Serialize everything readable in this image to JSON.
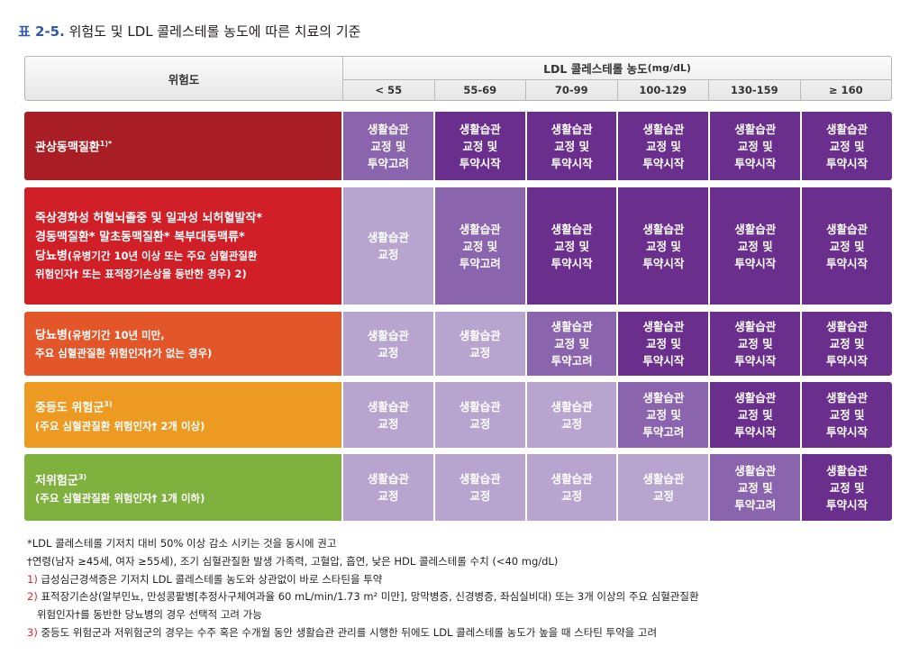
{
  "title": {
    "number": "표 2-5.",
    "text": "위험도 및 LDL 콜레스테롤 농도에 따른 치료의 기준"
  },
  "header": {
    "risk": "위험도",
    "ldl": "LDL 콜레스테롤 농도",
    "unit": "(mg/dL)",
    "columns": [
      "< 55",
      "55-69",
      "70-99",
      "100-129",
      "130-159",
      "≥ 160"
    ]
  },
  "rows": [
    {
      "color": "#a91e25",
      "lines": [
        {
          "text": "관상동맥질환",
          "sup": "1)*",
          "small": ""
        }
      ],
      "cells": [
        {
          "text": "생활습관\n교정 및\n투약고려",
          "shade": "mid"
        },
        {
          "text": "생활습관\n교정 및\n투약시작",
          "shade": "dark"
        },
        {
          "text": "생활습관\n교정 및\n투약시작",
          "shade": "dark"
        },
        {
          "text": "생활습관\n교정 및\n투약시작",
          "shade": "dark"
        },
        {
          "text": "생활습관\n교정 및\n투약시작",
          "shade": "dark"
        },
        {
          "text": "생활습관\n교정 및\n투약시작",
          "shade": "dark"
        }
      ]
    },
    {
      "color": "#d01f27",
      "lines": [
        {
          "text": "죽상경화성 허혈뇌졸중 및 일과성 뇌허혈발작*",
          "sup": "",
          "small": ""
        },
        {
          "text": "경동맥질환*  말초동맥질환*  복부대동맥류*",
          "sup": "",
          "small": ""
        },
        {
          "text": "당뇨병",
          "sup": "",
          "small": "(유병기간 10년 이상 또는 주요 심혈관질환"
        },
        {
          "text": "",
          "sup": "",
          "small": "위험인자† 또는 표적장기손상을 동반한 경우) 2)"
        }
      ],
      "cells": [
        {
          "text": "생활습관\n교정",
          "shade": "light"
        },
        {
          "text": "생활습관\n교정 및\n투약고려",
          "shade": "mid"
        },
        {
          "text": "생활습관\n교정 및\n투약시작",
          "shade": "dark"
        },
        {
          "text": "생활습관\n교정 및\n투약시작",
          "shade": "dark"
        },
        {
          "text": "생활습관\n교정 및\n투약시작",
          "shade": "dark"
        },
        {
          "text": "생활습관\n교정 및\n투약시작",
          "shade": "dark"
        }
      ]
    },
    {
      "color": "#e3562a",
      "lines": [
        {
          "text": "당뇨병",
          "sup": "",
          "small": "(유병기간 10년 미만,"
        },
        {
          "text": "",
          "sup": "",
          "small": "주요 심혈관질환 위험인자†가 없는 경우)"
        }
      ],
      "cells": [
        {
          "text": "생활습관\n교정",
          "shade": "light"
        },
        {
          "text": "생활습관\n교정",
          "shade": "light"
        },
        {
          "text": "생활습관\n교정 및\n투약고려",
          "shade": "mid"
        },
        {
          "text": "생활습관\n교정 및\n투약시작",
          "shade": "dark"
        },
        {
          "text": "생활습관\n교정 및\n투약시작",
          "shade": "dark"
        },
        {
          "text": "생활습관\n교정 및\n투약시작",
          "shade": "dark"
        }
      ]
    },
    {
      "color": "#ed9a23",
      "lines": [
        {
          "text": "중등도 위험군",
          "sup": "3)",
          "small": ""
        },
        {
          "text": "",
          "sup": "",
          "small": "(주요 심혈관질환 위험인자† 2개 이상)"
        }
      ],
      "cells": [
        {
          "text": "생활습관\n교정",
          "shade": "light"
        },
        {
          "text": "생활습관\n교정",
          "shade": "light"
        },
        {
          "text": "생활습관\n교정",
          "shade": "light"
        },
        {
          "text": "생활습관\n교정 및\n투약고려",
          "shade": "mid"
        },
        {
          "text": "생활습관\n교정 및\n투약시작",
          "shade": "dark"
        },
        {
          "text": "생활습관\n교정 및\n투약시작",
          "shade": "dark"
        }
      ]
    },
    {
      "color": "#7fb13f",
      "lines": [
        {
          "text": "저위험군",
          "sup": "3)",
          "small": ""
        },
        {
          "text": "",
          "sup": "",
          "small": "(주요 심혈관질환 위험인자† 1개 이하)"
        }
      ],
      "cells": [
        {
          "text": "생활습관\n교정",
          "shade": "light"
        },
        {
          "text": "생활습관\n교정",
          "shade": "light"
        },
        {
          "text": "생활습관\n교정",
          "shade": "light"
        },
        {
          "text": "생활습관\n교정",
          "shade": "light"
        },
        {
          "text": "생활습관\n교정 및\n투약고려",
          "shade": "mid"
        },
        {
          "text": "생활습관\n교정 및\n투약시작",
          "shade": "dark"
        }
      ]
    }
  ],
  "notes": [
    {
      "text": "*LDL 콜레스테롤 기저치 대비 50% 이상 감소 시키는 것을 동시에 권고",
      "mark": ""
    },
    {
      "text": "†연령(남자 ≥45세, 여자 ≥55세), 조기 심혈관질환 발생 가족력, 고혈압, 흡연, 낮은 HDL 콜레스테롤 수치 (<40 mg/dL)",
      "mark": ""
    },
    {
      "text": " 급성심근경색증은 기저치 LDL 콜레스테롤 농도와 상관없이 바로 스타틴을 투약",
      "mark": "1)"
    },
    {
      "text": " 표적장기손상(알부민뇨, 만성콩팥병[추정사구체여과율 60 mL/min/1.73 m² 미만], 망막병증, 신경병증, 좌심실비대) 또는 3개 이상의 주요 심혈관질환",
      "mark": "2)"
    },
    {
      "text": "   위험인자†를 동반한 당뇨병의 경우 선택적 고려 가능",
      "mark": ""
    },
    {
      "text": " 중등도 위험군과 저위험군의 경우는 수주 혹은 수개월 동안 생활습관 관리를 시행한 뒤에도 LDL 콜레스테롤 농도가 높을 때 스타틴 투약을 고려",
      "mark": "3)"
    }
  ]
}
